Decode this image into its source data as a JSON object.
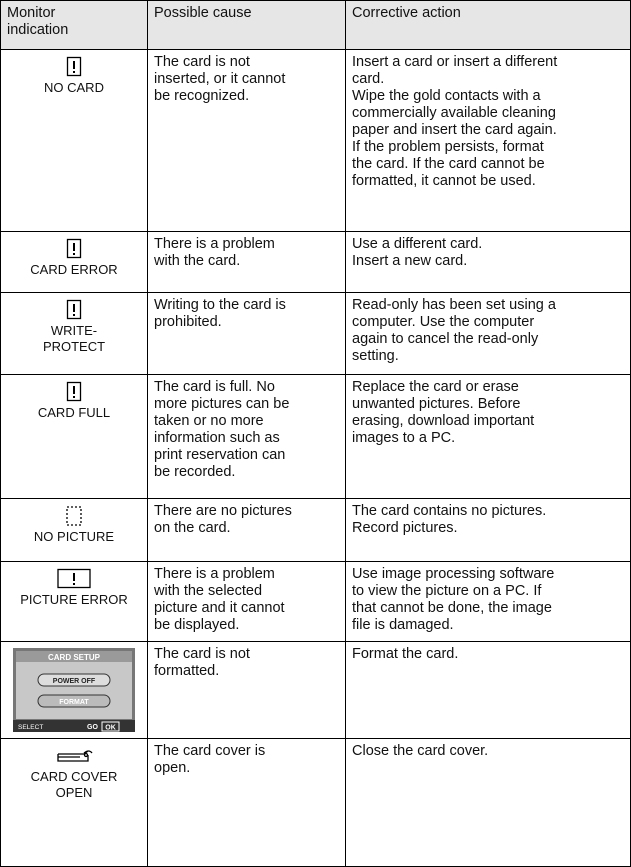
{
  "table": {
    "header": [
      [
        "Monitor",
        "indication"
      ],
      [
        "Possible cause"
      ],
      [
        "Corrective action"
      ]
    ],
    "rows": [
      {
        "indication": [
          "NO CARD"
        ],
        "cause": [
          "The card is not",
          "inserted, or it cannot",
          "be recognized."
        ],
        "action": [
          "Insert a card or insert a different",
          "card.",
          "Wipe the gold contacts with a",
          "commercially available cleaning",
          "paper and insert the card again.",
          "If the problem persists, format",
          "the card. If the card cannot be",
          "formatted, it cannot be used."
        ]
      },
      {
        "indication": [
          "CARD ERROR"
        ],
        "cause": [
          "There is a problem",
          "with the card."
        ],
        "action": [
          "Use a different card.",
          "Insert a new card."
        ]
      },
      {
        "indication": [
          "WRITE-",
          "PROTECT"
        ],
        "cause": [
          "Writing to the card is",
          "prohibited."
        ],
        "action": [
          "Read-only has been set using a",
          "computer. Use the computer",
          "again to cancel the read-only",
          "setting."
        ]
      },
      {
        "indication": [
          "CARD FULL"
        ],
        "cause": [
          "The card is full. No",
          "more pictures can be",
          "taken or no more",
          "information such as",
          "print reservation can",
          "be recorded."
        ],
        "action": [
          "Replace the card or erase",
          "unwanted pictures. Before",
          "erasing, download important",
          "images to a PC."
        ]
      },
      {
        "indication": [
          "NO PICTURE"
        ],
        "cause": [
          "There are no pictures",
          "on the card."
        ],
        "action": [
          "The card contains no pictures.",
          "Record pictures."
        ]
      },
      {
        "indication": [
          "PICTURE ERROR"
        ],
        "cause": [
          "There is a problem",
          "with the selected",
          "picture and it cannot",
          "be displayed."
        ],
        "action": [
          "Use image processing software",
          "to view the picture on a PC. If",
          "that cannot be done, the image",
          "file is damaged."
        ]
      },
      {
        "screen": {
          "title": "CARD SETUP",
          "options": [
            "POWER OFF",
            "FORMAT"
          ],
          "select": "SELECT",
          "go": "GO",
          "ok": "OK"
        },
        "cause": [
          "The card is not",
          "formatted."
        ],
        "action": [
          "Format the card."
        ]
      },
      {
        "indication": [
          "CARD COVER",
          "OPEN"
        ],
        "cause": [
          "The card cover is",
          "open."
        ],
        "action": [
          "Close the card cover."
        ]
      }
    ]
  }
}
